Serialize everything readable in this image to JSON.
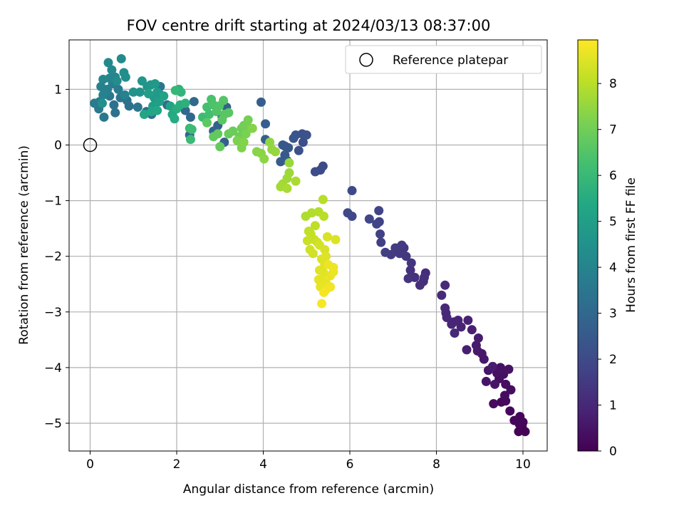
{
  "chart_data": {
    "type": "scatter",
    "title": "FOV centre drift starting at 2024/03/13 08:37:00",
    "xlabel": "Angular distance from reference (arcmin)",
    "ylabel": "Rotation from reference (arcmin)",
    "xlim": [
      -0.5,
      10.58
    ],
    "ylim": [
      -5.5,
      1.9
    ],
    "xticks": [
      0,
      2,
      4,
      6,
      8,
      10
    ],
    "yticks": [
      -5,
      -4,
      -3,
      -2,
      -1,
      0,
      1
    ],
    "grid": true,
    "legend": {
      "placement": "top-right",
      "entries": [
        "Reference platepar"
      ]
    },
    "reference_point": {
      "x": 0,
      "y": 0
    },
    "colorbar": {
      "label": "Hours from first FF file",
      "min": 0,
      "max": 8.95,
      "ticks": [
        0,
        1,
        2,
        3,
        4,
        5,
        6,
        7,
        8
      ],
      "colormap": "viridis"
    },
    "points": [
      [
        10.05,
        -5.15,
        0.02
      ],
      [
        9.9,
        -5.15,
        0.04
      ],
      [
        9.98,
        -5.05,
        0.06
      ],
      [
        10.0,
        -4.98,
        0.1
      ],
      [
        9.93,
        -4.88,
        0.12
      ],
      [
        9.92,
        -5.02,
        0.14
      ],
      [
        9.8,
        -4.95,
        0.16
      ],
      [
        9.7,
        -4.78,
        0.18
      ],
      [
        9.5,
        -4.62,
        0.2
      ],
      [
        9.6,
        -4.6,
        0.22
      ],
      [
        9.32,
        -4.65,
        0.26
      ],
      [
        9.58,
        -4.5,
        0.3
      ],
      [
        9.72,
        -4.4,
        0.32
      ],
      [
        9.6,
        -4.3,
        0.34
      ],
      [
        9.45,
        -4.2,
        0.36
      ],
      [
        9.55,
        -4.12,
        0.38
      ],
      [
        9.4,
        -4.1,
        0.4
      ],
      [
        9.48,
        -4.0,
        0.44
      ],
      [
        9.67,
        -4.03,
        0.46
      ],
      [
        9.15,
        -4.25,
        0.48
      ],
      [
        9.35,
        -4.3,
        0.5
      ],
      [
        9.2,
        -4.05,
        0.52
      ],
      [
        9.1,
        -3.85,
        0.56
      ],
      [
        9.05,
        -3.75,
        0.6
      ],
      [
        8.95,
        -3.7,
        0.64
      ],
      [
        8.92,
        -3.6,
        0.66
      ],
      [
        8.97,
        -3.47,
        0.7
      ],
      [
        9.3,
        -3.98,
        0.72
      ],
      [
        8.7,
        -3.68,
        0.76
      ],
      [
        8.82,
        -3.32,
        0.8
      ],
      [
        8.73,
        -3.15,
        0.84
      ],
      [
        8.57,
        -3.27,
        0.88
      ],
      [
        8.5,
        -3.15,
        0.9
      ],
      [
        8.4,
        -3.18,
        0.94
      ],
      [
        8.35,
        -3.22,
        0.96
      ],
      [
        8.42,
        -3.38,
        0.98
      ],
      [
        8.22,
        -3.02,
        1.0
      ],
      [
        8.24,
        -3.1,
        1.02
      ],
      [
        8.2,
        -2.93,
        1.04
      ],
      [
        8.12,
        -2.7,
        1.06
      ],
      [
        8.2,
        -2.52,
        1.08
      ],
      [
        7.75,
        -2.3,
        1.12
      ],
      [
        7.7,
        -2.45,
        1.16
      ],
      [
        7.62,
        -2.52,
        1.2
      ],
      [
        7.72,
        -2.38,
        1.22
      ],
      [
        7.5,
        -2.38,
        1.26
      ],
      [
        7.4,
        -2.25,
        1.3
      ],
      [
        7.35,
        -2.4,
        1.34
      ],
      [
        7.42,
        -2.12,
        1.38
      ],
      [
        7.25,
        -1.85,
        1.4
      ],
      [
        7.3,
        -2.0,
        1.44
      ],
      [
        7.15,
        -1.95,
        1.48
      ],
      [
        7.2,
        -1.8,
        1.5
      ],
      [
        7.05,
        -1.85,
        1.54
      ],
      [
        6.95,
        -1.97,
        1.58
      ],
      [
        6.82,
        -1.93,
        1.62
      ],
      [
        6.72,
        -1.75,
        1.66
      ],
      [
        6.7,
        -1.6,
        1.7
      ],
      [
        6.68,
        -1.38,
        1.74
      ],
      [
        6.62,
        -1.42,
        1.78
      ],
      [
        6.67,
        -1.18,
        1.82
      ],
      [
        6.45,
        -1.33,
        1.86
      ],
      [
        6.05,
        -1.28,
        1.9
      ],
      [
        5.95,
        -1.22,
        1.94
      ],
      [
        6.05,
        -0.82,
        1.98
      ],
      [
        5.38,
        -0.38,
        2.02
      ],
      [
        5.32,
        -0.45,
        2.06
      ],
      [
        5.2,
        -0.48,
        2.1
      ],
      [
        4.92,
        0.05,
        2.14
      ],
      [
        4.82,
        -0.1,
        2.18
      ],
      [
        4.9,
        0.2,
        2.22
      ],
      [
        5.0,
        0.18,
        2.26
      ],
      [
        4.75,
        0.18,
        2.3
      ],
      [
        4.7,
        0.12,
        2.34
      ],
      [
        4.5,
        -0.02,
        2.38
      ],
      [
        4.58,
        -0.05,
        2.42
      ],
      [
        4.45,
        0.0,
        2.46
      ],
      [
        4.5,
        -0.18,
        2.5
      ],
      [
        4.4,
        -0.3,
        2.54
      ],
      [
        4.55,
        -0.28,
        2.58
      ],
      [
        4.05,
        0.38,
        2.62
      ],
      [
        3.95,
        0.77,
        2.66
      ],
      [
        4.05,
        0.1,
        2.7
      ],
      [
        3.1,
        0.05,
        2.72
      ],
      [
        2.95,
        0.35,
        2.76
      ],
      [
        3.05,
        0.5,
        2.8
      ],
      [
        3.15,
        0.68,
        2.84
      ],
      [
        2.85,
        0.25,
        2.88
      ],
      [
        2.3,
        0.18,
        2.92
      ],
      [
        2.32,
        0.5,
        2.96
      ],
      [
        2.2,
        0.62,
        3.0
      ],
      [
        2.4,
        0.78,
        3.04
      ],
      [
        1.78,
        0.72,
        3.06
      ],
      [
        1.62,
        0.9,
        3.1
      ],
      [
        1.55,
        0.77,
        3.14
      ],
      [
        1.42,
        0.55,
        3.18
      ],
      [
        1.3,
        0.6,
        3.22
      ],
      [
        0.9,
        0.7,
        3.26
      ],
      [
        0.85,
        0.8,
        3.3
      ],
      [
        0.58,
        0.58,
        3.34
      ],
      [
        0.55,
        0.72,
        3.38
      ],
      [
        0.7,
        0.85,
        3.42
      ],
      [
        1.62,
        1.05,
        3.46
      ],
      [
        1.1,
        0.68,
        3.5
      ],
      [
        0.45,
        0.88,
        3.54
      ],
      [
        0.32,
        0.5,
        3.58
      ],
      [
        0.2,
        0.65,
        3.62
      ],
      [
        0.22,
        0.78,
        3.66
      ],
      [
        0.1,
        0.75,
        3.7
      ],
      [
        0.65,
        1.0,
        3.74
      ],
      [
        0.52,
        1.1,
        3.78
      ],
      [
        0.4,
        1.0,
        3.82
      ],
      [
        0.35,
        0.95,
        3.86
      ],
      [
        0.25,
        1.05,
        3.9
      ],
      [
        0.3,
        0.9,
        3.94
      ],
      [
        0.8,
        0.9,
        3.98
      ],
      [
        0.45,
        1.2,
        4.02
      ],
      [
        0.58,
        1.22,
        4.06
      ],
      [
        0.3,
        1.18,
        4.1
      ],
      [
        0.5,
        1.35,
        4.14
      ],
      [
        0.42,
        1.48,
        4.2
      ],
      [
        0.72,
        1.55,
        4.26
      ],
      [
        0.62,
        1.15,
        4.3
      ],
      [
        0.78,
        1.3,
        4.36
      ],
      [
        0.82,
        1.22,
        4.4
      ],
      [
        0.28,
        0.75,
        4.46
      ],
      [
        1.0,
        0.95,
        4.5
      ],
      [
        1.15,
        0.95,
        4.56
      ],
      [
        1.32,
        1.05,
        4.6
      ],
      [
        1.2,
        1.15,
        4.66
      ],
      [
        1.4,
        1.08,
        4.7
      ],
      [
        1.5,
        1.1,
        4.76
      ],
      [
        1.55,
        0.95,
        4.82
      ],
      [
        1.48,
        0.85,
        4.88
      ],
      [
        1.35,
        0.92,
        4.94
      ],
      [
        1.45,
        0.7,
        5.0
      ],
      [
        1.6,
        0.78,
        5.06
      ],
      [
        1.7,
        0.88,
        5.12
      ],
      [
        1.85,
        0.7,
        5.18
      ],
      [
        1.25,
        0.55,
        5.24
      ],
      [
        1.42,
        0.6,
        5.3
      ],
      [
        1.55,
        0.62,
        5.36
      ],
      [
        1.9,
        0.55,
        5.42
      ],
      [
        1.95,
        0.47,
        5.48
      ],
      [
        2.0,
        0.65,
        5.55
      ],
      [
        2.08,
        0.72,
        5.62
      ],
      [
        2.2,
        0.75,
        5.68
      ],
      [
        2.05,
        1.0,
        5.75
      ],
      [
        2.1,
        0.95,
        5.82
      ],
      [
        1.97,
        0.98,
        5.9
      ],
      [
        2.3,
        0.3,
        5.98
      ],
      [
        2.32,
        0.1,
        6.04
      ],
      [
        2.35,
        0.28,
        6.1
      ],
      [
        2.6,
        0.5,
        6.16
      ],
      [
        2.75,
        0.55,
        6.22
      ],
      [
        2.7,
        0.68,
        6.28
      ],
      [
        2.8,
        0.82,
        6.34
      ],
      [
        2.85,
        0.72,
        6.4
      ],
      [
        2.92,
        0.6,
        6.46
      ],
      [
        2.98,
        0.7,
        6.5
      ],
      [
        3.08,
        0.8,
        6.54
      ],
      [
        3.1,
        0.55,
        6.58
      ],
      [
        3.2,
        0.58,
        6.62
      ],
      [
        3.05,
        0.45,
        6.66
      ],
      [
        2.7,
        0.4,
        6.7
      ],
      [
        2.85,
        0.15,
        6.74
      ],
      [
        2.95,
        0.2,
        6.78
      ],
      [
        3.0,
        -0.03,
        6.82
      ],
      [
        3.2,
        0.2,
        6.86
      ],
      [
        3.3,
        0.25,
        6.9
      ],
      [
        3.45,
        0.15,
        6.94
      ],
      [
        3.5,
        0.3,
        6.98
      ],
      [
        3.55,
        0.35,
        7.02
      ],
      [
        3.65,
        0.45,
        7.06
      ],
      [
        3.7,
        0.3,
        7.1
      ],
      [
        3.6,
        0.2,
        7.14
      ],
      [
        3.4,
        0.08,
        7.18
      ],
      [
        3.5,
        -0.05,
        7.22
      ],
      [
        3.55,
        0.05,
        7.26
      ],
      [
        3.75,
        0.3,
        7.3
      ],
      [
        3.85,
        -0.12,
        7.34
      ],
      [
        3.95,
        -0.15,
        7.38
      ],
      [
        4.02,
        -0.25,
        7.42
      ],
      [
        4.15,
        0.05,
        7.46
      ],
      [
        4.2,
        -0.08,
        7.5
      ],
      [
        4.28,
        -0.12,
        7.54
      ],
      [
        4.6,
        -0.32,
        7.58
      ],
      [
        4.6,
        -0.5,
        7.62
      ],
      [
        4.55,
        -0.6,
        7.66
      ],
      [
        4.45,
        -0.7,
        7.7
      ],
      [
        4.4,
        -0.75,
        7.74
      ],
      [
        4.55,
        -0.78,
        7.78
      ],
      [
        4.75,
        -0.65,
        7.82
      ],
      [
        4.98,
        -1.28,
        7.86
      ],
      [
        5.12,
        -1.22,
        7.9
      ],
      [
        5.28,
        -1.2,
        7.94
      ],
      [
        5.38,
        -0.98,
        7.98
      ],
      [
        5.4,
        -1.28,
        8.02
      ],
      [
        5.2,
        -1.45,
        8.06
      ],
      [
        5.05,
        -1.55,
        8.1
      ],
      [
        5.1,
        -1.6,
        8.14
      ],
      [
        5.18,
        -1.7,
        8.18
      ],
      [
        5.02,
        -1.72,
        8.22
      ],
      [
        5.25,
        -1.75,
        8.26
      ],
      [
        5.08,
        -1.88,
        8.3
      ],
      [
        5.15,
        -1.95,
        8.34
      ],
      [
        5.3,
        -1.8,
        8.38
      ],
      [
        5.42,
        -1.88,
        8.42
      ],
      [
        5.48,
        -1.65,
        8.44
      ],
      [
        5.67,
        -1.7,
        8.46
      ],
      [
        5.35,
        -2.05,
        8.48
      ],
      [
        5.45,
        -2.0,
        8.5
      ],
      [
        5.42,
        -2.15,
        8.52
      ],
      [
        5.3,
        -2.25,
        8.54
      ],
      [
        5.4,
        -2.3,
        8.56
      ],
      [
        5.38,
        -2.45,
        8.58
      ],
      [
        5.28,
        -2.42,
        8.6
      ],
      [
        5.32,
        -2.55,
        8.62
      ],
      [
        5.45,
        -2.48,
        8.64
      ],
      [
        5.55,
        -2.35,
        8.66
      ],
      [
        5.62,
        -2.28,
        8.68
      ],
      [
        5.5,
        -2.15,
        8.7
      ],
      [
        5.62,
        -2.2,
        8.72
      ],
      [
        5.45,
        -2.6,
        8.74
      ],
      [
        5.55,
        -2.55,
        8.78
      ],
      [
        5.4,
        -2.65,
        8.82
      ],
      [
        5.35,
        -2.85,
        8.86
      ]
    ]
  }
}
